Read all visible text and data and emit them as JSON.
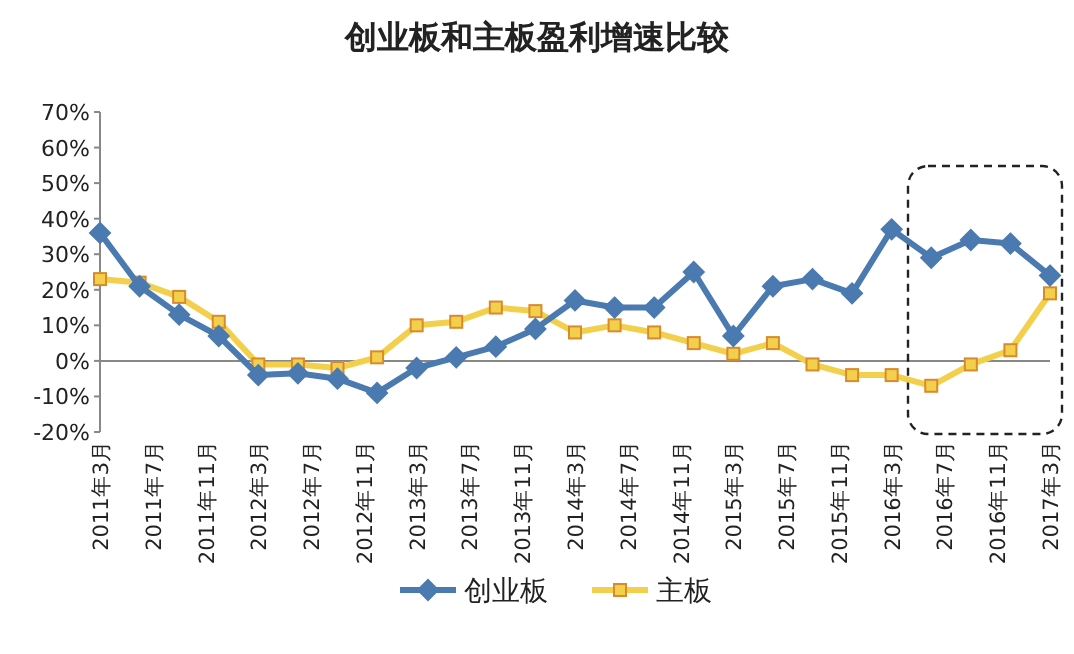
{
  "chart_data": {
    "type": "line",
    "title": "创业板和主板盈利增速比较",
    "x": [
      "2011-03",
      "2011-06",
      "2011-09",
      "2011-12",
      "2012-03",
      "2012-06",
      "2012-09",
      "2012-12",
      "2013-03",
      "2013-06",
      "2013-09",
      "2013-12",
      "2014-03",
      "2014-06",
      "2014-09",
      "2014-12",
      "2015-03",
      "2015-06",
      "2015-09",
      "2015-12",
      "2016-03",
      "2016-06",
      "2016-09",
      "2016-12",
      "2017-03"
    ],
    "series": [
      {
        "name": "创业板",
        "color": "#4a7ab0",
        "marker": "diamond",
        "values": [
          36,
          21,
          13,
          7,
          -4,
          -3.5,
          -5,
          -9,
          -2,
          1,
          4,
          9,
          17,
          15,
          15,
          25,
          7,
          21,
          23,
          19,
          37,
          29,
          34,
          33,
          24
        ]
      },
      {
        "name": "主板",
        "color": "#f3d04c",
        "marker": "square",
        "values": [
          23,
          22,
          18,
          11,
          -1,
          -1,
          -2,
          1,
          10,
          11,
          15,
          14,
          8,
          10,
          8,
          5,
          2,
          5,
          -1,
          -4,
          -4,
          -7,
          -1,
          3,
          19
        ]
      }
    ],
    "xlim": [
      "2011-03",
      "2017-03"
    ],
    "xticks": [
      {
        "value": "2011-03",
        "label": "2011年3月"
      },
      {
        "value": "2011-07",
        "label": "2011年7月"
      },
      {
        "value": "2011-11",
        "label": "2011年11月"
      },
      {
        "value": "2012-03",
        "label": "2012年3月"
      },
      {
        "value": "2012-07",
        "label": "2012年7月"
      },
      {
        "value": "2012-11",
        "label": "2012年11月"
      },
      {
        "value": "2013-03",
        "label": "2013年3月"
      },
      {
        "value": "2013-07",
        "label": "2013年7月"
      },
      {
        "value": "2013-11",
        "label": "2013年11月"
      },
      {
        "value": "2014-03",
        "label": "2014年3月"
      },
      {
        "value": "2014-07",
        "label": "2014年7月"
      },
      {
        "value": "2014-11",
        "label": "2014年11月"
      },
      {
        "value": "2015-03",
        "label": "2015年3月"
      },
      {
        "value": "2015-07",
        "label": "2015年7月"
      },
      {
        "value": "2015-11",
        "label": "2015年11月"
      },
      {
        "value": "2016-03",
        "label": "2016年3月"
      },
      {
        "value": "2016-07",
        "label": "2016年7月"
      },
      {
        "value": "2016-11",
        "label": "2016年11月"
      },
      {
        "value": "2017-03",
        "label": "2017年3月"
      }
    ],
    "ylim": [
      -20,
      70
    ],
    "yticks": [
      {
        "value": -20,
        "label": "-20%"
      },
      {
        "value": -10,
        "label": "-10%"
      },
      {
        "value": 0,
        "label": "0%"
      },
      {
        "value": 10,
        "label": "10%"
      },
      {
        "value": 20,
        "label": "20%"
      },
      {
        "value": 30,
        "label": "30%"
      },
      {
        "value": 40,
        "label": "40%"
      },
      {
        "value": 50,
        "label": "50%"
      },
      {
        "value": 60,
        "label": "60%"
      },
      {
        "value": 70,
        "label": "70%"
      }
    ],
    "legend": "bottom"
  }
}
